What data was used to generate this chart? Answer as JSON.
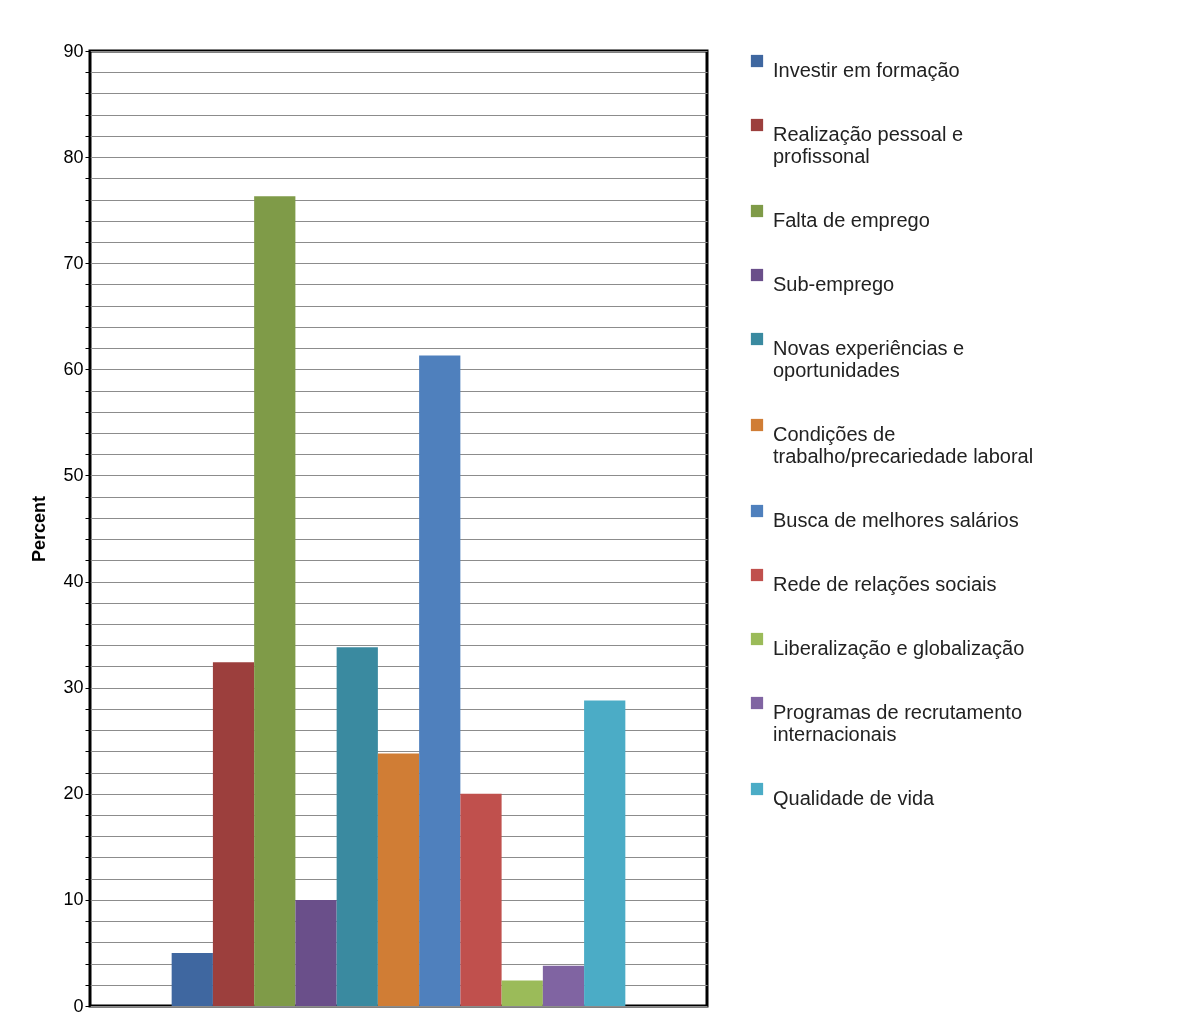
{
  "chart_data": {
    "type": "bar",
    "ylabel": "Percent",
    "categories": [
      null
    ],
    "ylim": [
      0,
      90
    ],
    "yticks": [
      0,
      {
        "value": 2,
        "label": null
      },
      {
        "value": 4,
        "label": null
      },
      {
        "value": 6,
        "label": null
      },
      {
        "value": 8,
        "label": null
      },
      10,
      {
        "value": 12,
        "label": null
      },
      {
        "value": 14,
        "label": null
      },
      {
        "value": 16,
        "label": null
      },
      {
        "value": 18,
        "label": null
      },
      20,
      {
        "value": 22,
        "label": null
      },
      {
        "value": 24,
        "label": null
      },
      {
        "value": 26,
        "label": null
      },
      {
        "value": 28,
        "label": null
      },
      30,
      {
        "value": 32,
        "label": null
      },
      {
        "value": 34,
        "label": null
      },
      {
        "value": 36,
        "label": null
      },
      {
        "value": 38,
        "label": null
      },
      40,
      {
        "value": 42,
        "label": null
      },
      {
        "value": 44,
        "label": null
      },
      {
        "value": 46,
        "label": null
      },
      {
        "value": 48,
        "label": null
      },
      50,
      {
        "value": 52,
        "label": null
      },
      {
        "value": 54,
        "label": null
      },
      {
        "value": 56,
        "label": null
      },
      {
        "value": 58,
        "label": null
      },
      60,
      {
        "value": 62,
        "label": null
      },
      {
        "value": 64,
        "label": null
      },
      {
        "value": 66,
        "label": null
      },
      {
        "value": 68,
        "label": null
      },
      70,
      {
        "value": 72,
        "label": null
      },
      {
        "value": 74,
        "label": null
      },
      {
        "value": 76,
        "label": null
      },
      {
        "value": 78,
        "label": null
      },
      80,
      {
        "value": 82,
        "label": null
      },
      {
        "value": 84,
        "label": null
      },
      {
        "value": 86,
        "label": null
      },
      {
        "value": 88,
        "label": null
      },
      90
    ],
    "grid": "y",
    "legend": "right",
    "tick_labels": "y",
    "series": [
      {
        "name": "Investir em formação",
        "color": "#3f67a0",
        "values": [
          5
        ]
      },
      {
        "name": "Realização pessoal e profissonal",
        "color": "#9c3f3d",
        "values": [
          32.4
        ]
      },
      {
        "name": "Falta de emprego",
        "color": "#7f9b48",
        "values": [
          76.3
        ]
      },
      {
        "name": "Sub-emprego",
        "color": "#6a4f8a",
        "values": [
          10
        ]
      },
      {
        "name": "Novas experiências e oportunidades",
        "color": "#3a8aa0",
        "values": [
          33.8
        ]
      },
      {
        "name": "Condições de trabalho/precariedade laboral",
        "color": "#d07d35",
        "values": [
          23.8
        ]
      },
      {
        "name": "Busca de melhores salários",
        "color": "#4f80bd",
        "values": [
          61.3
        ]
      },
      {
        "name": "Rede de relações sociais",
        "color": "#c0504d",
        "values": [
          20
        ]
      },
      {
        "name": "Liberalização e globalização",
        "color": "#9bbb59",
        "values": [
          2.4
        ]
      },
      {
        "name": "Programas de recrutamento internacionais",
        "color": "#8064a2",
        "values": [
          3.8
        ]
      },
      {
        "name": "Qualidade de vida",
        "color": "#4bacc6",
        "values": [
          28.8
        ]
      }
    ]
  }
}
